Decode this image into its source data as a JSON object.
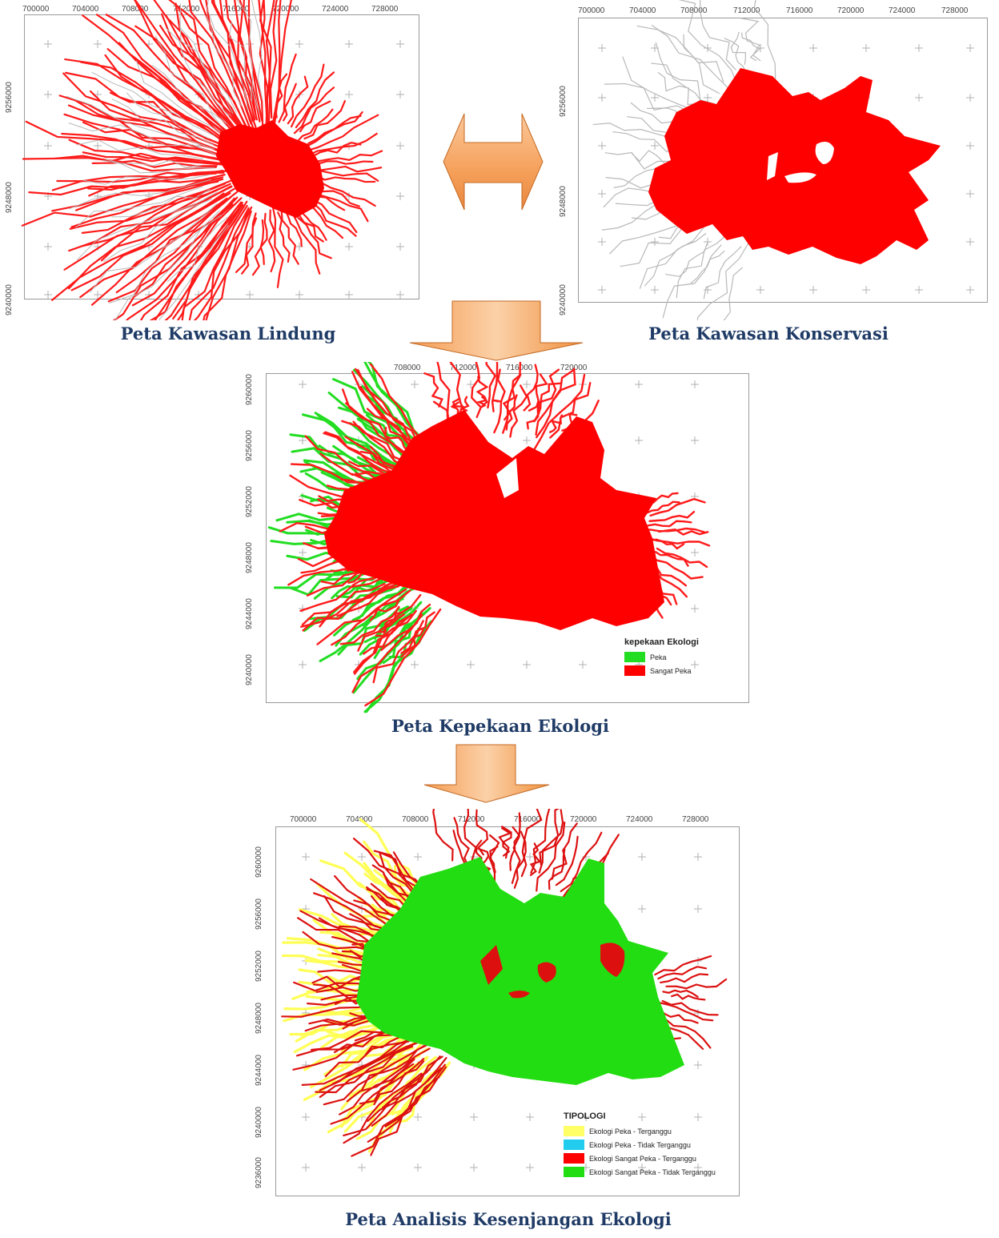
{
  "maps": [
    {
      "id": "lindung",
      "caption": "Peta Kawasan Lindung",
      "x_ticks": [
        "700000",
        "704000",
        "708000",
        "712000",
        "716000",
        "720000",
        "724000",
        "728000"
      ],
      "y_ticks": [
        "9256000",
        "9248000",
        "9240000"
      ],
      "fill_color": "#ff0000"
    },
    {
      "id": "konservasi",
      "caption": "Peta Kawasan Konservasi",
      "x_ticks": [
        "700000",
        "704000",
        "708000",
        "712000",
        "716000",
        "720000",
        "724000",
        "728000"
      ],
      "y_ticks": [
        "9256000",
        "9248000",
        "9240000"
      ],
      "fill_color": "#ff0000"
    },
    {
      "id": "kepekaan",
      "caption": "Peta Kepekaan Ekologi",
      "x_ticks": [
        "708000",
        "712000",
        "716000",
        "720000"
      ],
      "y_ticks": [
        "9260000",
        "9256000",
        "9252000",
        "9248000",
        "9244000",
        "9240000"
      ],
      "legend": {
        "title": "kepekaan Ekologi",
        "items": [
          {
            "label": "Peka",
            "color": "#22dd22"
          },
          {
            "label": "Sangat Peka",
            "color": "#ff0000"
          }
        ]
      }
    },
    {
      "id": "kesenjangan",
      "caption": "Peta Analisis Kesenjangan Ekologi",
      "x_ticks": [
        "700000",
        "704000",
        "708000",
        "712000",
        "716000",
        "720000",
        "724000",
        "728000"
      ],
      "y_ticks": [
        "9260000",
        "9256000",
        "9252000",
        "9248000",
        "9244000",
        "9240000",
        "9236000"
      ],
      "legend": {
        "title": "TIPOLOGI",
        "items": [
          {
            "label": "Ekologi Peka - Terganggu",
            "color": "#ffff66"
          },
          {
            "label": "Ekologi Peka - Tidak Terganggu",
            "color": "#22ccee"
          },
          {
            "label": "Ekologi Sangat Peka - Terganggu",
            "color": "#ff0000"
          },
          {
            "label": "Ekologi Sangat Peka - Tidak Terganggu",
            "color": "#22dd11"
          }
        ]
      }
    }
  ],
  "arrows": {
    "color": "#f5a05a",
    "types": [
      "double-horizontal-arrow",
      "down-arrow",
      "down-arrow"
    ]
  }
}
